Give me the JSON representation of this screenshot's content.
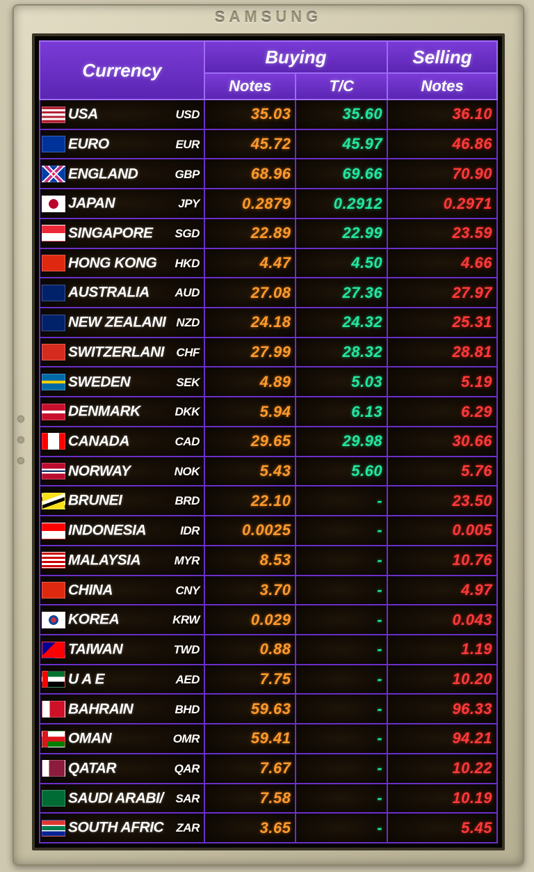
{
  "brand": "SAMSUNG",
  "columns": {
    "currency": "Currency",
    "buying": "Buying",
    "selling": "Selling",
    "notes": "Notes",
    "tc": "T/C"
  },
  "colors": {
    "header_bg_top": "#7a3bd6",
    "header_bg_bottom": "#5b25b3",
    "header_border": "#a06af5",
    "cell_border": "#6b2fc9",
    "cell_bg_center": "#1e1408",
    "cell_bg_edge": "#0a0602",
    "text_white": "#ffffff",
    "buy_orange": "#ff9a2e",
    "tc_green": "#23e6a0",
    "sell_red": "#ff3a3a"
  },
  "col_widths_pct": [
    36,
    20,
    20,
    24
  ],
  "rows": [
    {
      "country": "USA",
      "code": "USD",
      "flag_css": "background:linear-gradient(#b22234 14%,#fff 14% 28%,#b22234 28% 42%,#fff 42% 56%,#b22234 56% 70%,#fff 70% 84%,#b22234 84%);position:relative;",
      "buy": "35.03",
      "tc": "35.60",
      "sell": "36.10"
    },
    {
      "country": "EURO",
      "code": "EUR",
      "flag_css": "background:#003399;",
      "buy": "45.72",
      "tc": "45.97",
      "sell": "46.86"
    },
    {
      "country": "ENGLAND",
      "code": "GBP",
      "flag_css": "background:linear-gradient(45deg,#012169 40%,#fff 40% 45%,#c8102e 45% 55%,#fff 55% 60%,#012169 60%),linear-gradient(-45deg,#012169 40%,#fff 40% 45%,#c8102e 45% 55%,#fff 55% 60%,#012169 60%);background-blend-mode:screen;",
      "buy": "68.96",
      "tc": "69.66",
      "sell": "70.90"
    },
    {
      "country": "JAPAN",
      "code": "JPY",
      "flag_css": "background:radial-gradient(circle at 50% 50%,#bc002d 35%,#fff 36%);",
      "buy": "0.2879",
      "tc": "0.2912",
      "sell": "0.2971"
    },
    {
      "country": "SINGAPORE",
      "code": "SGD",
      "flag_css": "background:linear-gradient(#ed2939 50%,#fff 50%);",
      "buy": "22.89",
      "tc": "22.99",
      "sell": "23.59"
    },
    {
      "country": "HONG KONG",
      "code": "HKD",
      "flag_css": "background:#de2910;",
      "buy": "4.47",
      "tc": "4.50",
      "sell": "4.66"
    },
    {
      "country": "AUSTRALIA",
      "code": "AUD",
      "flag_css": "background:#012169;",
      "buy": "27.08",
      "tc": "27.36",
      "sell": "27.97"
    },
    {
      "country": "NEW ZEALANI",
      "code": "NZD",
      "flag_css": "background:#012169;",
      "buy": "24.18",
      "tc": "24.32",
      "sell": "25.31"
    },
    {
      "country": "SWITZERLANI",
      "code": "CHF",
      "flag_css": "background:#d52b1e;",
      "buy": "27.99",
      "tc": "28.32",
      "sell": "28.81"
    },
    {
      "country": "SWEDEN",
      "code": "SEK",
      "flag_css": "background:linear-gradient(#006aa7 40%,#fecc00 40% 60%,#006aa7 60%);",
      "buy": "4.89",
      "tc": "5.03",
      "sell": "5.19"
    },
    {
      "country": "DENMARK",
      "code": "DKK",
      "flag_css": "background:linear-gradient(#c8102e 40%,#fff 40% 60%,#c8102e 60%);",
      "buy": "5.94",
      "tc": "6.13",
      "sell": "6.29"
    },
    {
      "country": "CANADA",
      "code": "CAD",
      "flag_css": "background:linear-gradient(90deg,#ff0000 25%,#fff 25% 75%,#ff0000 75%);",
      "buy": "29.65",
      "tc": "29.98",
      "sell": "30.66"
    },
    {
      "country": "NORWAY",
      "code": "NOK",
      "flag_css": "background:linear-gradient(#ba0c2f 35%,#fff 35% 45%,#00205b 45% 55%,#fff 55% 65%,#ba0c2f 65%);",
      "buy": "5.43",
      "tc": "5.60",
      "sell": "5.76"
    },
    {
      "country": "BRUNEI",
      "code": "BRD",
      "flag_css": "background:linear-gradient(160deg,#f7e017 35%,#fff 35% 50%,#000 50% 65%,#f7e017 65%);",
      "buy": "22.10",
      "tc": "-",
      "sell": "23.50"
    },
    {
      "country": "INDONESIA",
      "code": "IDR",
      "flag_css": "background:linear-gradient(#ff0000 50%,#fff 50%);",
      "buy": "0.0025",
      "tc": "-",
      "sell": "0.005"
    },
    {
      "country": "MALAYSIA",
      "code": "MYR",
      "flag_css": "background:repeating-linear-gradient(#cc0001 0 3px,#fff 3px 6px);",
      "buy": "8.53",
      "tc": "-",
      "sell": "10.76"
    },
    {
      "country": "CHINA",
      "code": "CNY",
      "flag_css": "background:#de2910;",
      "buy": "3.70",
      "tc": "-",
      "sell": "4.97"
    },
    {
      "country": "KOREA",
      "code": "KRW",
      "flag_css": "background:radial-gradient(circle at 50% 50%,#cd2e3a 20%,#0047a0 20% 35%,#fff 36%);",
      "buy": "0.029",
      "tc": "-",
      "sell": "0.043"
    },
    {
      "country": "TAIWAN",
      "code": "TWD",
      "flag_css": "background:linear-gradient(135deg,#000095 35%,#fe0000 35%);",
      "buy": "0.88",
      "tc": "-",
      "sell": "1.19"
    },
    {
      "country": "U A E",
      "code": "AED",
      "flag_css": "background:linear-gradient(90deg,#ff0000 25%,transparent 25%),linear-gradient(#00732f 33%,#fff 33% 66%,#000 66%);",
      "buy": "7.75",
      "tc": "-",
      "sell": "10.20"
    },
    {
      "country": "BAHRAIN",
      "code": "BHD",
      "flag_css": "background:linear-gradient(90deg,#fff 33%,#ce1126 33%);",
      "buy": "59.63",
      "tc": "-",
      "sell": "96.33"
    },
    {
      "country": "OMAN",
      "code": "OMR",
      "flag_css": "background:linear-gradient(90deg,#db161b 25%,transparent 25%),linear-gradient(#fff 33%,#db161b 33% 66%,#008000 66%);",
      "buy": "59.41",
      "tc": "-",
      "sell": "94.21"
    },
    {
      "country": "QATAR",
      "code": "QAR",
      "flag_css": "background:linear-gradient(90deg,#fff 30%,#8d1b3d 30%);",
      "buy": "7.67",
      "tc": "-",
      "sell": "10.22"
    },
    {
      "country": "SAUDI ARABI/",
      "code": "SAR",
      "flag_css": "background:#006c35;",
      "buy": "7.58",
      "tc": "-",
      "sell": "10.19"
    },
    {
      "country": "SOUTH AFRIC",
      "code": "ZAR",
      "flag_css": "background:linear-gradient(#de3831 30%,#fff 30% 37%,#007a4d 37% 63%,#fff 63% 70%,#002395 70%);",
      "buy": "3.65",
      "tc": "-",
      "sell": "5.45"
    }
  ]
}
